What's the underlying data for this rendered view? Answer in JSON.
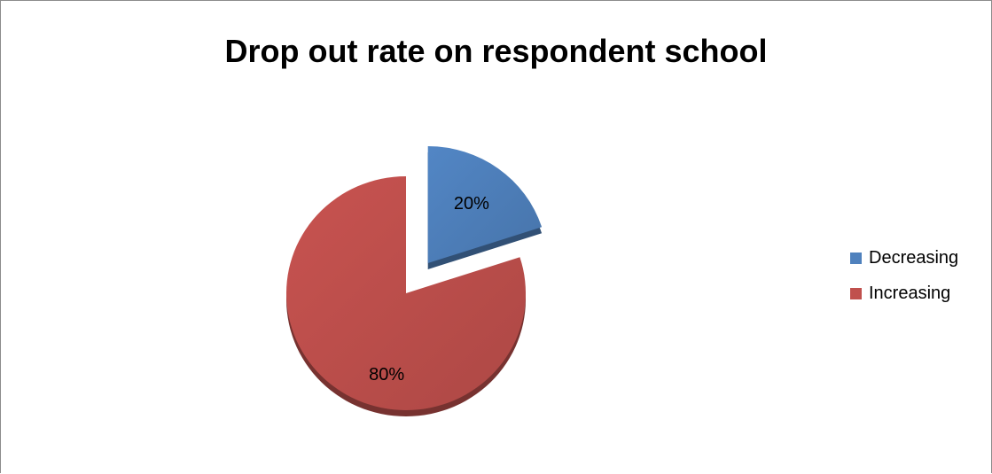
{
  "chart_data": {
    "type": "pie",
    "title": "Drop out rate on respondent school",
    "slices": [
      {
        "label": "Decreasing",
        "value": 20,
        "display": "20%",
        "color": "#4f81bd"
      },
      {
        "label": "Increasing",
        "value": 80,
        "display": "80%",
        "color": "#c0504d"
      }
    ],
    "exploded": [
      "Decreasing"
    ],
    "legend_position": "right"
  }
}
